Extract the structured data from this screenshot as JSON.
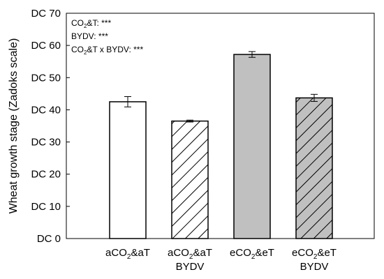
{
  "chart_data": {
    "type": "bar",
    "ylabel": "Wheat growth stage (Zadoks scale)",
    "ylim": [
      0,
      70
    ],
    "ytick_values": [
      0,
      10,
      20,
      30,
      40,
      50,
      60,
      70
    ],
    "ytick_labels": [
      "DC 0",
      "DC 10",
      "DC 20",
      "DC 30",
      "DC 40",
      "DC 50",
      "DC 60",
      "DC 70"
    ],
    "categories": [
      {
        "main": "aCO",
        "sub": "2",
        "rest": "&aT",
        "line2": ""
      },
      {
        "main": "aCO",
        "sub": "2",
        "rest": "&aT",
        "line2": "BYDV"
      },
      {
        "main": "eCO",
        "sub": "2",
        "rest": "&eT",
        "line2": ""
      },
      {
        "main": "eCO",
        "sub": "2",
        "rest": "&eT",
        "line2": "BYDV"
      }
    ],
    "values": [
      42.5,
      36.5,
      57.2,
      43.7
    ],
    "errors": [
      1.6,
      0.3,
      0.9,
      1.1
    ],
    "fills": [
      "#ffffff",
      "hatch-white",
      "#c0c0c0",
      "hatch-gray"
    ],
    "grid": false,
    "annotations": [
      {
        "pre": "CO",
        "sub": "2",
        "post": "&T: ***"
      },
      {
        "pre": "BYDV: ***",
        "sub": "",
        "post": ""
      },
      {
        "pre": "CO",
        "sub": "2",
        "post": "&T x BYDV: ***"
      }
    ]
  }
}
